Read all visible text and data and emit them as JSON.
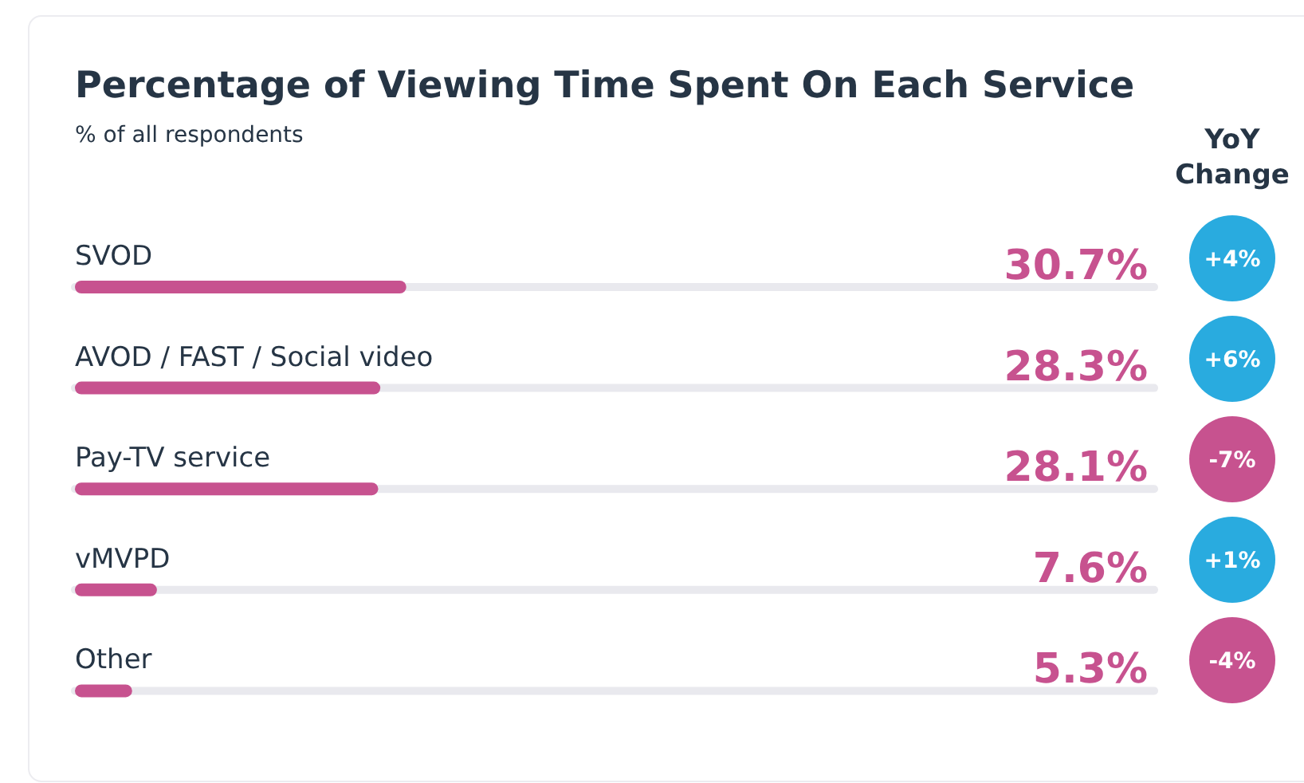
{
  "chart_data": {
    "type": "bar",
    "orientation": "horizontal",
    "title": "Percentage of Viewing Time Spent On Each Service",
    "subtitle": "% of all respondents",
    "categories": [
      "SVOD",
      "AVOD / FAST / Social video",
      "Pay-TV service",
      "vMVPD",
      "Other"
    ],
    "values": [
      30.7,
      28.3,
      28.1,
      7.6,
      5.3
    ],
    "color": "#c7528f",
    "value_labels": [
      "30.7%",
      "28.3%",
      "28.1%",
      "7.6%",
      "5.3%"
    ],
    "xlim": [
      0,
      100
    ],
    "annotations": [
      "YoY Change",
      "+4%",
      "+6%",
      "-7%",
      "+1%",
      "-4%"
    ]
  }
}
